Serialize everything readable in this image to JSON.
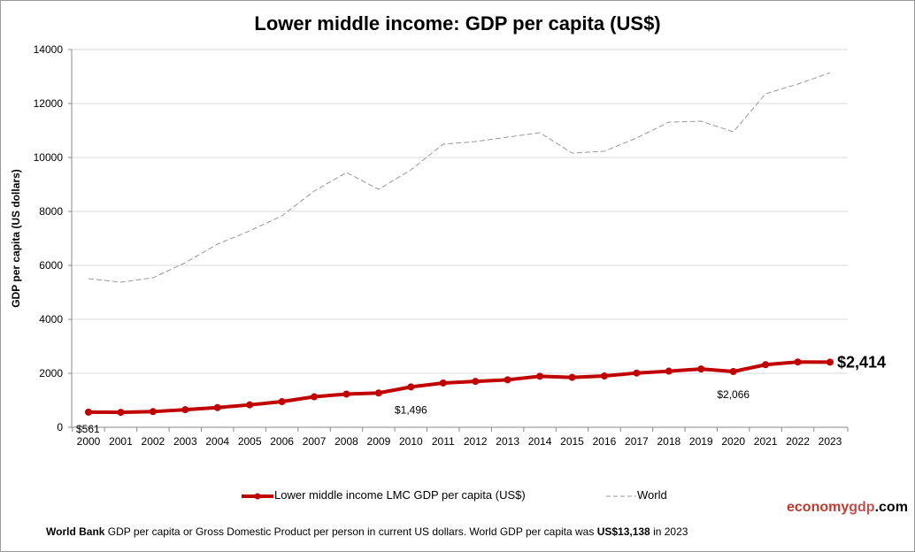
{
  "chart_data": {
    "type": "line",
    "title": "Lower middle income: GDP per capita (US$)",
    "ylabel": "GDP per capita (US dollars)",
    "xlabel": "",
    "ylim": [
      0,
      14000
    ],
    "yticks": [
      0,
      2000,
      4000,
      6000,
      8000,
      10000,
      12000,
      14000
    ],
    "grid": true,
    "legend_placement": "bottom",
    "categories": [
      "2000",
      "2001",
      "2002",
      "2003",
      "2004",
      "2005",
      "2006",
      "2007",
      "2008",
      "2009",
      "2010",
      "2011",
      "2012",
      "2013",
      "2014",
      "2015",
      "2016",
      "2017",
      "2018",
      "2019",
      "2020",
      "2021",
      "2022",
      "2023"
    ],
    "series": [
      {
        "name": "Lower middle income LMC GDP per capita (US$)",
        "color": "#c00000",
        "style": "solid-markers",
        "values": [
          561,
          555,
          580,
          650,
          730,
          830,
          950,
          1130,
          1230,
          1270,
          1496,
          1640,
          1700,
          1760,
          1890,
          1850,
          1900,
          2010,
          2080,
          2160,
          2066,
          2320,
          2420,
          2414
        ]
      },
      {
        "name": "World",
        "color": "#999999",
        "style": "dashed",
        "values": [
          5508,
          5377,
          5541,
          6098,
          6787,
          7279,
          7836,
          8754,
          9443,
          8820,
          9541,
          10492,
          10590,
          10754,
          10918,
          10164,
          10230,
          10721,
          11311,
          11344,
          10951,
          12361,
          12721,
          13138
        ]
      }
    ],
    "annotations": [
      {
        "series": 0,
        "index": 0,
        "text": "$561"
      },
      {
        "series": 0,
        "index": 10,
        "text": "$1,496"
      },
      {
        "series": 0,
        "index": 20,
        "text": "$2,066"
      },
      {
        "series": 0,
        "index": 23,
        "text": "$2,414"
      }
    ]
  },
  "logo": {
    "part1": "economy",
    "part2": "gdp",
    "part3": ".com"
  },
  "footer": {
    "bold1": "World Bank",
    "text1": " GDP per capita or Gross Domestic Product per person  in current US dollars.   World GDP per capita was ",
    "bold2": "US$13,138",
    "text2": "  in 2023"
  },
  "colors": {
    "lmc": "#c00000",
    "world": "#999999",
    "grid": "#d9d9d9"
  }
}
